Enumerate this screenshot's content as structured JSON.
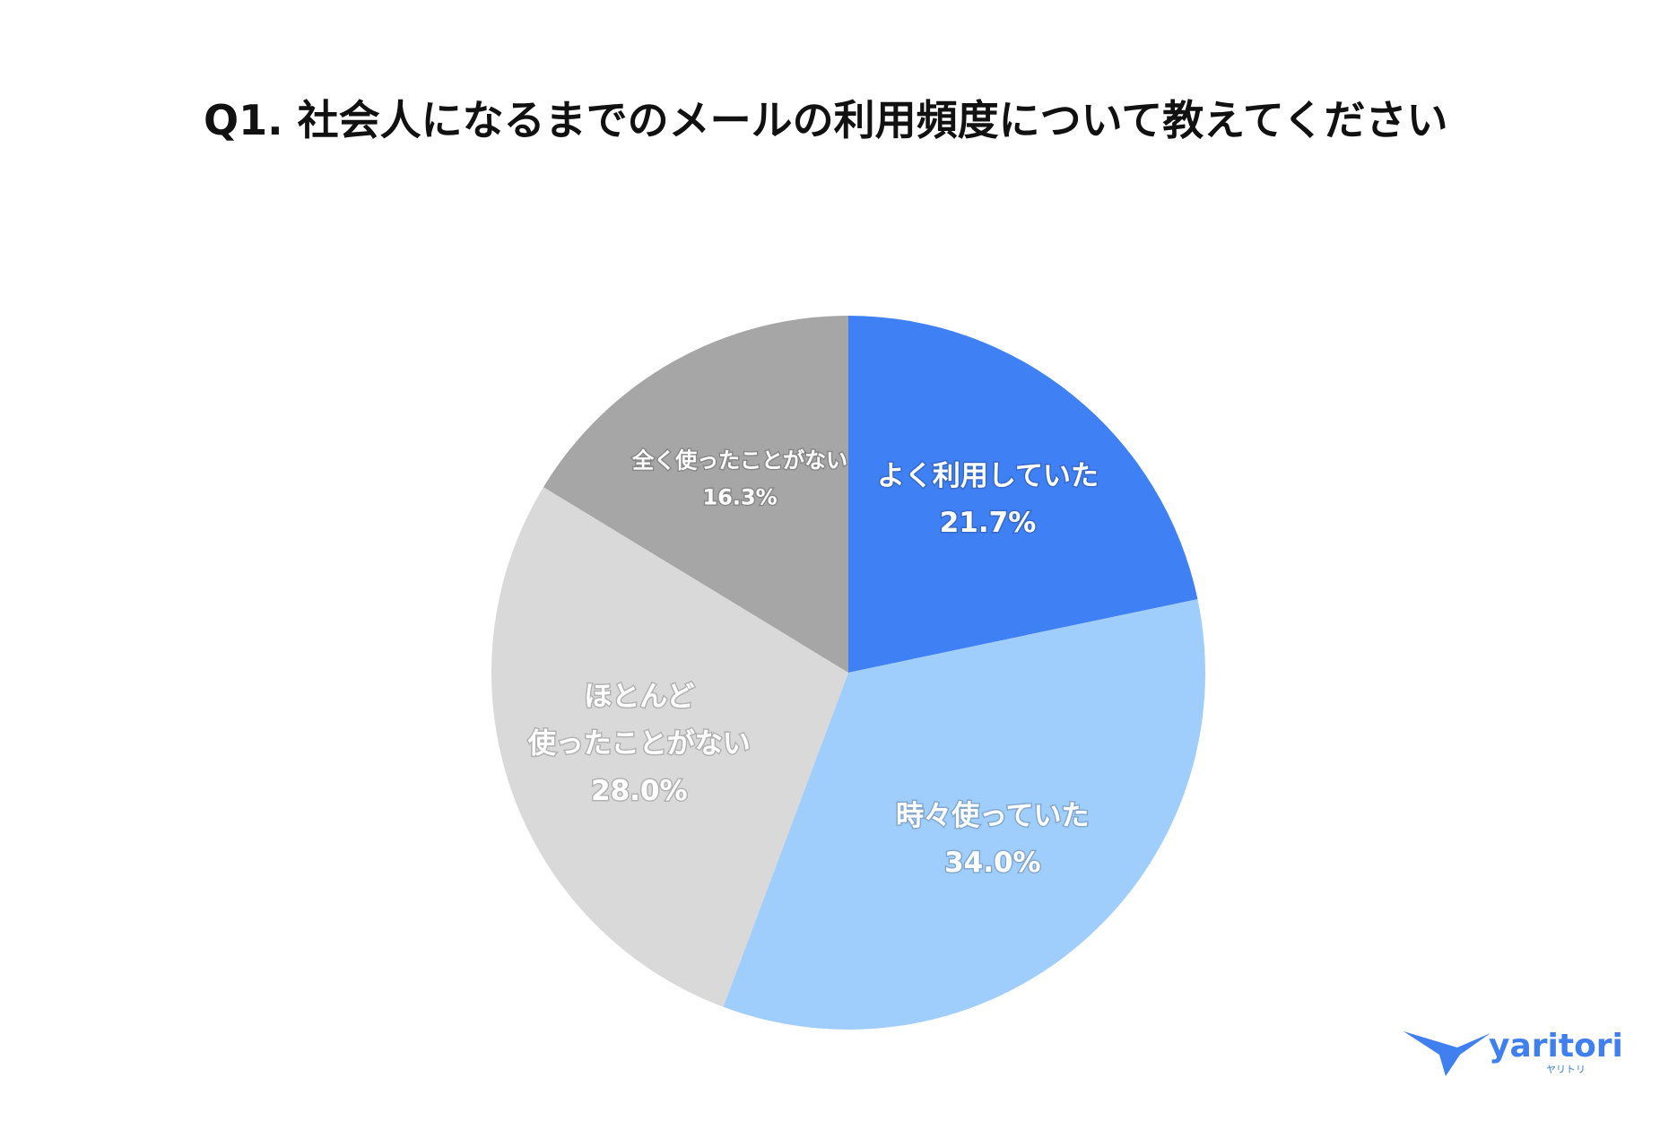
{
  "chart_data": {
    "type": "pie",
    "title": "Q1. 社会人になるまでのメールの利用頻度について教えてください",
    "categories": [
      "よく利用していた",
      "時々使っていた",
      "ほとんど\n使ったことがない",
      "全く使ったことがない"
    ],
    "values": [
      21.7,
      34.0,
      28.0,
      16.3
    ],
    "value_labels": [
      "21.7%",
      "34.0%",
      "28.0%",
      "16.3%"
    ],
    "colors": [
      "#4080f5",
      "#a0cefc",
      "#d9d9d9",
      "#a6a6a6"
    ]
  },
  "logo": {
    "text": "yaritori",
    "subtext": "ヤリトリ"
  }
}
